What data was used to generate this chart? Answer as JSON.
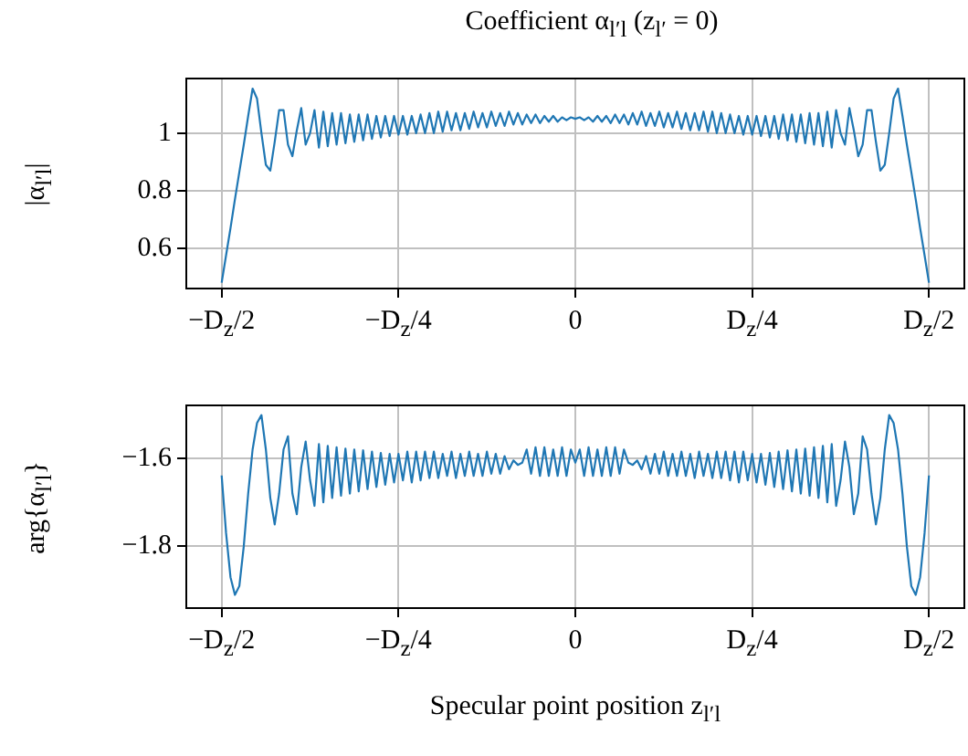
{
  "chart_data": [
    {
      "type": "line",
      "title": "Coefficient α$_{l′l}$ (z$_{l′}$ = 0)",
      "ylabel": "|α$_{l′l}$|",
      "grid": true,
      "categories": [
        "−D$_{z}$/2",
        null,
        null,
        null,
        null,
        null,
        null,
        null,
        null,
        null,
        null,
        null,
        null,
        null,
        null,
        null,
        null,
        null,
        null,
        null,
        null,
        null,
        null,
        null,
        null,
        null,
        null,
        null,
        null,
        null,
        null,
        null,
        null,
        null,
        null,
        null,
        null,
        null,
        null,
        null,
        "−D$_{z}$/4",
        null,
        null,
        null,
        null,
        null,
        null,
        null,
        null,
        null,
        null,
        null,
        null,
        null,
        null,
        null,
        null,
        null,
        null,
        null,
        null,
        null,
        null,
        null,
        null,
        null,
        null,
        null,
        null,
        null,
        null,
        null,
        null,
        null,
        null,
        null,
        null,
        null,
        null,
        null,
        "0",
        null,
        null,
        null,
        null,
        null,
        null,
        null,
        null,
        null,
        null,
        null,
        null,
        null,
        null,
        null,
        null,
        null,
        null,
        null,
        null,
        null,
        null,
        null,
        null,
        null,
        null,
        null,
        null,
        null,
        null,
        null,
        null,
        null,
        null,
        null,
        null,
        null,
        null,
        null,
        "D$_{z}$/4",
        null,
        null,
        null,
        null,
        null,
        null,
        null,
        null,
        null,
        null,
        null,
        null,
        null,
        null,
        null,
        null,
        null,
        null,
        null,
        null,
        null,
        null,
        null,
        null,
        null,
        null,
        null,
        null,
        null,
        null,
        null,
        null,
        null,
        null,
        null,
        null,
        null,
        null,
        null,
        "D$_{z}$/2"
      ],
      "ylim": [
        0.46,
        1.19
      ],
      "yticks": [
        0.6,
        0.8,
        1
      ],
      "series": [
        {
          "color": "#1f77b4",
          "values": [
            0.48,
            0.576,
            0.67,
            0.77,
            0.865,
            0.96,
            1.06,
            1.155,
            1.12,
            1.0,
            0.89,
            0.87,
            0.97,
            1.08,
            1.08,
            0.96,
            0.92,
            1.01,
            1.087,
            0.96,
            1.0,
            1.08,
            0.95,
            1.075,
            0.955,
            1.07,
            0.96,
            1.07,
            0.965,
            1.065,
            0.97,
            1.065,
            0.975,
            1.065,
            0.98,
            1.06,
            0.985,
            1.06,
            0.99,
            1.06,
            0.995,
            1.06,
            0.995,
            1.06,
            1.0,
            1.065,
            1.0,
            1.07,
            1.0,
            1.075,
            1.005,
            1.075,
            1.01,
            1.07,
            1.01,
            1.07,
            1.015,
            1.075,
            1.02,
            1.07,
            1.02,
            1.075,
            1.025,
            1.07,
            1.025,
            1.075,
            1.03,
            1.07,
            1.03,
            1.065,
            1.035,
            1.065,
            1.035,
            1.06,
            1.04,
            1.06,
            1.04,
            1.055,
            1.045,
            1.055,
            1.05,
            1.055,
            1.045,
            1.055,
            1.04,
            1.06,
            1.04,
            1.06,
            1.035,
            1.065,
            1.035,
            1.065,
            1.03,
            1.07,
            1.03,
            1.075,
            1.025,
            1.07,
            1.025,
            1.075,
            1.02,
            1.07,
            1.02,
            1.075,
            1.015,
            1.07,
            1.01,
            1.07,
            1.01,
            1.075,
            1.005,
            1.075,
            1.0,
            1.07,
            1.0,
            1.065,
            1.0,
            1.06,
            0.995,
            1.06,
            0.995,
            1.06,
            0.99,
            1.06,
            0.985,
            1.06,
            0.98,
            1.065,
            0.975,
            1.065,
            0.97,
            1.065,
            0.965,
            1.07,
            0.96,
            1.07,
            0.955,
            1.075,
            0.95,
            1.08,
            1.0,
            0.96,
            1.087,
            1.01,
            0.92,
            0.96,
            1.08,
            1.08,
            0.97,
            0.87,
            0.89,
            1.0,
            1.12,
            1.155,
            1.06,
            0.96,
            0.865,
            0.77,
            0.67,
            0.576,
            0.48
          ]
        }
      ]
    },
    {
      "type": "line",
      "xlabel": "Specular point position z$_{l′l}$",
      "ylabel": "arg{α$_{l′l}$}",
      "grid": true,
      "categories": [
        "−D$_{z}$/2",
        null,
        null,
        null,
        null,
        null,
        null,
        null,
        null,
        null,
        null,
        null,
        null,
        null,
        null,
        null,
        null,
        null,
        null,
        null,
        null,
        null,
        null,
        null,
        null,
        null,
        null,
        null,
        null,
        null,
        null,
        null,
        null,
        null,
        null,
        null,
        null,
        null,
        null,
        null,
        "−D$_{z}$/4",
        null,
        null,
        null,
        null,
        null,
        null,
        null,
        null,
        null,
        null,
        null,
        null,
        null,
        null,
        null,
        null,
        null,
        null,
        null,
        null,
        null,
        null,
        null,
        null,
        null,
        null,
        null,
        null,
        null,
        null,
        null,
        null,
        null,
        null,
        null,
        null,
        null,
        null,
        null,
        "0",
        null,
        null,
        null,
        null,
        null,
        null,
        null,
        null,
        null,
        null,
        null,
        null,
        null,
        null,
        null,
        null,
        null,
        null,
        null,
        null,
        null,
        null,
        null,
        null,
        null,
        null,
        null,
        null,
        null,
        null,
        null,
        null,
        null,
        null,
        null,
        null,
        null,
        null,
        null,
        "D$_{z}$/4",
        null,
        null,
        null,
        null,
        null,
        null,
        null,
        null,
        null,
        null,
        null,
        null,
        null,
        null,
        null,
        null,
        null,
        null,
        null,
        null,
        null,
        null,
        null,
        null,
        null,
        null,
        null,
        null,
        null,
        null,
        null,
        null,
        null,
        null,
        null,
        null,
        null,
        null,
        null,
        "D$_{z}$/2"
      ],
      "ylim": [
        -1.94,
        -1.48
      ],
      "yticks": [
        -1.8,
        -1.6
      ],
      "series": [
        {
          "color": "#1f77b4",
          "values": [
            -1.639,
            -1.77,
            -1.87,
            -1.91,
            -1.89,
            -1.8,
            -1.68,
            -1.58,
            -1.52,
            -1.502,
            -1.58,
            -1.69,
            -1.75,
            -1.68,
            -1.58,
            -1.55,
            -1.68,
            -1.727,
            -1.62,
            -1.562,
            -1.65,
            -1.708,
            -1.568,
            -1.7,
            -1.572,
            -1.69,
            -1.575,
            -1.685,
            -1.578,
            -1.68,
            -1.58,
            -1.675,
            -1.582,
            -1.67,
            -1.585,
            -1.665,
            -1.588,
            -1.66,
            -1.59,
            -1.655,
            -1.59,
            -1.65,
            -1.585,
            -1.655,
            -1.585,
            -1.65,
            -1.585,
            -1.645,
            -1.585,
            -1.645,
            -1.59,
            -1.64,
            -1.585,
            -1.645,
            -1.59,
            -1.64,
            -1.585,
            -1.64,
            -1.59,
            -1.64,
            -1.585,
            -1.635,
            -1.59,
            -1.635,
            -1.595,
            -1.625,
            -1.605,
            -1.615,
            -1.61,
            -1.58,
            -1.635,
            -1.575,
            -1.64,
            -1.575,
            -1.64,
            -1.58,
            -1.64,
            -1.575,
            -1.64,
            -1.58,
            -1.61,
            -1.58,
            -1.64,
            -1.575,
            -1.64,
            -1.58,
            -1.64,
            -1.575,
            -1.64,
            -1.575,
            -1.635,
            -1.58,
            -1.61,
            -1.615,
            -1.605,
            -1.625,
            -1.595,
            -1.635,
            -1.59,
            -1.635,
            -1.585,
            -1.64,
            -1.59,
            -1.64,
            -1.585,
            -1.64,
            -1.59,
            -1.645,
            -1.585,
            -1.64,
            -1.59,
            -1.645,
            -1.585,
            -1.645,
            -1.585,
            -1.65,
            -1.585,
            -1.655,
            -1.585,
            -1.65,
            -1.59,
            -1.655,
            -1.59,
            -1.66,
            -1.588,
            -1.665,
            -1.585,
            -1.67,
            -1.582,
            -1.675,
            -1.58,
            -1.68,
            -1.578,
            -1.685,
            -1.575,
            -1.69,
            -1.572,
            -1.7,
            -1.568,
            -1.708,
            -1.65,
            -1.562,
            -1.62,
            -1.727,
            -1.68,
            -1.55,
            -1.58,
            -1.68,
            -1.75,
            -1.69,
            -1.58,
            -1.502,
            -1.52,
            -1.58,
            -1.68,
            -1.8,
            -1.89,
            -1.91,
            -1.87,
            -1.77,
            -1.639
          ]
        }
      ]
    }
  ]
}
